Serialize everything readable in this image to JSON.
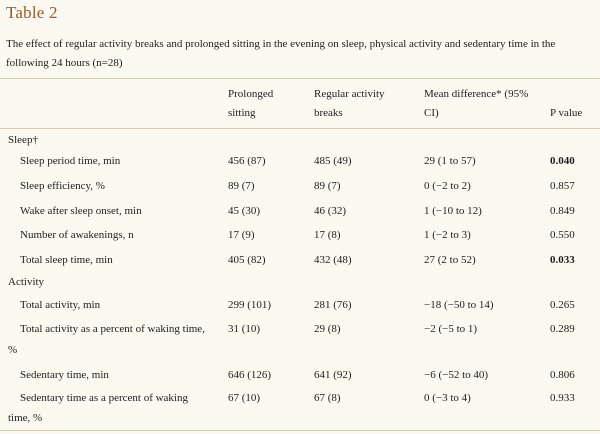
{
  "title": "Table 2",
  "caption": "The effect of regular activity breaks and prolonged sitting in the evening on sleep, physical activity and sedentary time in the following 24 hours (n=28)",
  "columns": {
    "prolonged": [
      "Prolonged",
      "sitting"
    ],
    "regular": [
      "Regular activity",
      "breaks"
    ],
    "mean_diff": [
      "Mean difference* (95%",
      "CI)"
    ],
    "pvalue": "P value"
  },
  "sections": {
    "sleep": "Sleep†",
    "activity": "Activity"
  },
  "rows": {
    "r1": {
      "label": "Sleep period time, min",
      "prolonged": "456 (87)",
      "regular": "485 (49)",
      "diff": "29 (1 to 57)",
      "p": "0.040"
    },
    "r2": {
      "label": "Sleep efficiency, %",
      "prolonged": "89 (7)",
      "regular": "89 (7)",
      "diff": "0 (−2 to 2)",
      "p": "0.857"
    },
    "r3": {
      "label": "Wake after sleep onset, min",
      "prolonged": "45 (30)",
      "regular": "46 (32)",
      "diff": "1 (−10 to 12)",
      "p": "0.849"
    },
    "r4": {
      "label": "Number of awakenings, n",
      "prolonged": "17 (9)",
      "regular": "17 (8)",
      "diff": "1 (−2 to 3)",
      "p": "0.550"
    },
    "r5": {
      "label": "Total sleep time, min",
      "prolonged": "405 (82)",
      "regular": "432 (48)",
      "diff": "27 (2 to 52)",
      "p": "0.033"
    },
    "r6": {
      "label": "Total activity, min",
      "prolonged": "299 (101)",
      "regular": "281 (76)",
      "diff": "−18 (−50 to 14)",
      "p": "0.265"
    },
    "r7": {
      "label_line1": "Total activity as a percent of waking time,",
      "label_line2": "%",
      "prolonged": "31 (10)",
      "regular": "29 (8)",
      "diff": "−2 (−5 to 1)",
      "p": "0.289"
    },
    "r8": {
      "label": "Sedentary time, min",
      "prolonged": "646 (126)",
      "regular": "641 (92)",
      "diff": "−6 (−52 to 40)",
      "p": "0.806"
    },
    "r9": {
      "label_line1": "Sedentary time as a percent of waking",
      "label_line2": "time, %",
      "prolonged": "67 (10)",
      "regular": "67 (8)",
      "diff": "0 (−3 to 4)",
      "p": "0.933"
    }
  }
}
